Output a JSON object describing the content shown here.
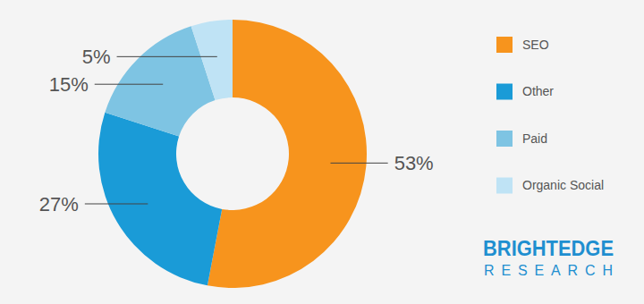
{
  "chart_data": {
    "type": "pie",
    "categories": [
      "SEO",
      "Other",
      "Paid",
      "Organic Social"
    ],
    "values": [
      53,
      27,
      15,
      5
    ],
    "value_labels": [
      "53%",
      "27%",
      "15%",
      "5%"
    ],
    "colors": [
      "#f7941d",
      "#1a9bd7",
      "#7ec4e3",
      "#bfe3f5"
    ],
    "data_labels": true,
    "legend": "right",
    "annotations": [
      "BRIGHTEDGE",
      "RESEARCH"
    ]
  }
}
